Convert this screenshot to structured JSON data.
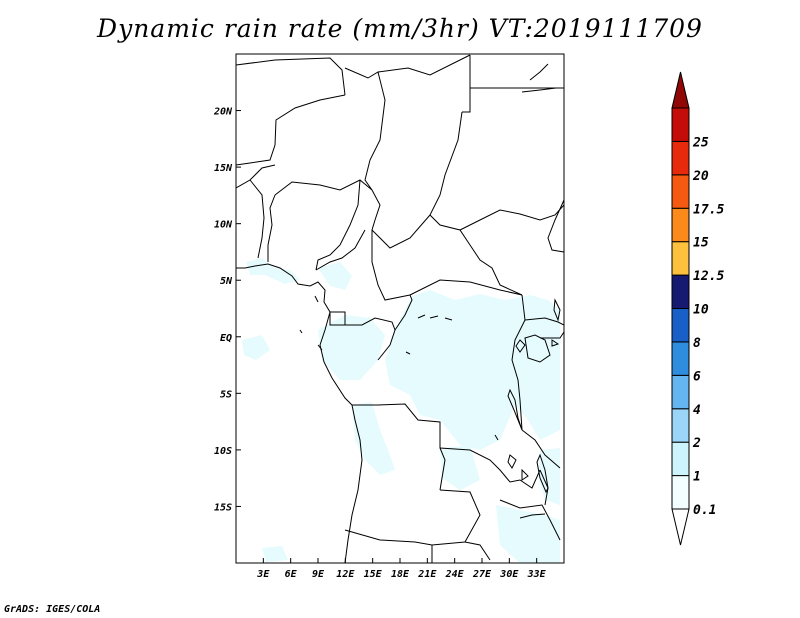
{
  "title": "Dynamic rain rate (mm/3hr) VT:2019111709",
  "footer": "GrADS: IGES/COLA",
  "map": {
    "lon_range": [
      0,
      36
    ],
    "lat_range": [
      -20,
      25
    ],
    "lon_ticks": [
      {
        "value": 3,
        "label": "3E"
      },
      {
        "value": 6,
        "label": "6E"
      },
      {
        "value": 9,
        "label": "9E"
      },
      {
        "value": 12,
        "label": "12E"
      },
      {
        "value": 15,
        "label": "15E"
      },
      {
        "value": 18,
        "label": "18E"
      },
      {
        "value": 21,
        "label": "21E"
      },
      {
        "value": 24,
        "label": "24E"
      },
      {
        "value": 27,
        "label": "27E"
      },
      {
        "value": 30,
        "label": "30E"
      },
      {
        "value": 33,
        "label": "33E"
      }
    ],
    "lat_ticks": [
      {
        "value": 20,
        "label": "20N"
      },
      {
        "value": 15,
        "label": "15N"
      },
      {
        "value": 10,
        "label": "10N"
      },
      {
        "value": 5,
        "label": "5N"
      },
      {
        "value": 0,
        "label": "EQ"
      },
      {
        "value": -5,
        "label": "5S"
      },
      {
        "value": -10,
        "label": "10S"
      },
      {
        "value": -15,
        "label": "15S"
      }
    ]
  },
  "colorbar": {
    "levels": [
      {
        "label": "0.1",
        "color": "#f2feff"
      },
      {
        "label": "1",
        "color": "#cdf4fd"
      },
      {
        "label": "2",
        "color": "#9bd6f8"
      },
      {
        "label": "4",
        "color": "#63b6ef"
      },
      {
        "label": "6",
        "color": "#2f8de0"
      },
      {
        "label": "8",
        "color": "#1860c8"
      },
      {
        "label": "10",
        "color": "#161a70"
      },
      {
        "label": "12.5",
        "color": "#fdc13e"
      },
      {
        "label": "15",
        "color": "#fb8a1b"
      },
      {
        "label": "17.5",
        "color": "#f65a10"
      },
      {
        "label": "20",
        "color": "#e82a0c"
      },
      {
        "label": "25",
        "color": "#c40c08"
      }
    ],
    "bottom_color": "#ffffff",
    "top_color": "#8f0806"
  }
}
